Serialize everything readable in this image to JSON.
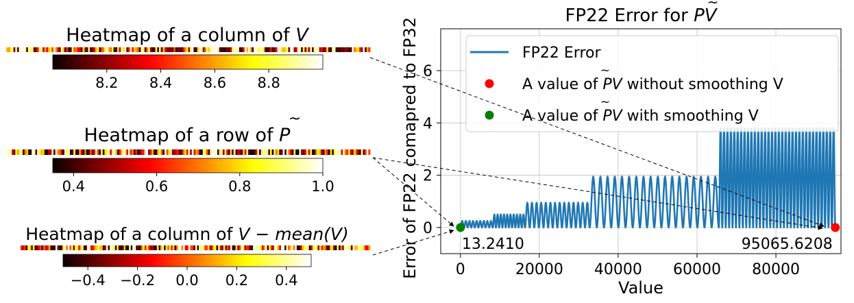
{
  "chart_data": [
    {
      "type": "heatmap",
      "title": "Heatmap of a column of V",
      "title_parts": {
        "prefix": "Heatmap of a column of ",
        "math": "V",
        "suffix": ""
      },
      "colormap": "hot",
      "colorbar_ticks": [
        "8.2",
        "8.4",
        "8.6",
        "8.8"
      ],
      "colorbar_tick_values": [
        8.2,
        8.4,
        8.6,
        8.8
      ],
      "colorbar_range": [
        8.0,
        9.0
      ],
      "cells": 200
    },
    {
      "type": "heatmap",
      "title": "Heatmap of a row of P̃",
      "title_parts": {
        "prefix": "Heatmap of a row of ",
        "math": "P",
        "suffix": ""
      },
      "colormap": "hot",
      "colorbar_ticks": [
        "0.4",
        "0.6",
        "0.8",
        "1.0"
      ],
      "colorbar_tick_values": [
        0.4,
        0.6,
        0.8,
        1.0
      ],
      "colorbar_range": [
        0.35,
        1.0
      ],
      "cells": 200
    },
    {
      "type": "heatmap",
      "title": "Heatmap of a column of V − mean(V)",
      "title_parts": {
        "prefix": "Heatmap of a column of ",
        "math": "V − mean(V)",
        "suffix": ""
      },
      "colormap": "hot",
      "colorbar_ticks": [
        "−0.4",
        "−0.2",
        "0.0",
        "0.2",
        "0.4"
      ],
      "colorbar_tick_values": [
        -0.4,
        -0.2,
        0.0,
        0.2,
        0.4
      ],
      "colorbar_range": [
        -0.5,
        0.5
      ],
      "cells": 200
    },
    {
      "type": "line",
      "title": "FP22 Error for P̃V",
      "title_parts": {
        "prefix": "FP22 Error for ",
        "math": "PV"
      },
      "xlabel": "Value",
      "ylabel": "Error of FP22 comapred to FP32",
      "xlim": [
        -5000,
        96500
      ],
      "ylim": [
        -1.0,
        7.6
      ],
      "xticks": [
        0,
        20000,
        40000,
        60000,
        80000
      ],
      "xtick_labels": [
        "0",
        "20000",
        "40000",
        "60000",
        "80000"
      ],
      "yticks": [
        0,
        2,
        4,
        6
      ],
      "ytick_labels": [
        "0",
        "2",
        "4",
        "6"
      ],
      "grid": true,
      "legend_position": "top-right",
      "series": [
        {
          "name": "FP22 Error",
          "color": "#1f77b4",
          "segments": [
            {
              "x_start": 13,
              "x_end": 8192,
              "amplitude": 0.25,
              "cycles": 9
            },
            {
              "x_start": 8192,
              "x_end": 16384,
              "amplitude": 0.5,
              "cycles": 10
            },
            {
              "x_start": 16384,
              "x_end": 32768,
              "amplitude": 0.95,
              "cycles": 14
            },
            {
              "x_start": 32768,
              "x_end": 65536,
              "amplitude": 1.95,
              "cycles": 18
            },
            {
              "x_start": 65536,
              "x_end": 95066,
              "amplitude": 3.8,
              "cycles": 34
            }
          ]
        }
      ],
      "points": [
        {
          "name": "A value of P̃V without smoothing V",
          "legend_prefix": "A value of ",
          "legend_math": "PV",
          "legend_suffix": " without smoothing V",
          "x": 95065.6208,
          "y": 0,
          "color": "#ff0000",
          "label": "95065.6208"
        },
        {
          "name": "A value of P̃V with smoothing V",
          "legend_prefix": "A value of ",
          "legend_math": "PV",
          "legend_suffix": " with smoothing V",
          "x": 13.241,
          "y": 0,
          "color": "#008000",
          "label": "13.2410"
        }
      ],
      "legend": [
        "FP22 Error",
        "A value of P̃V without smoothing V",
        "A value of P̃V with smoothing V"
      ]
    }
  ]
}
